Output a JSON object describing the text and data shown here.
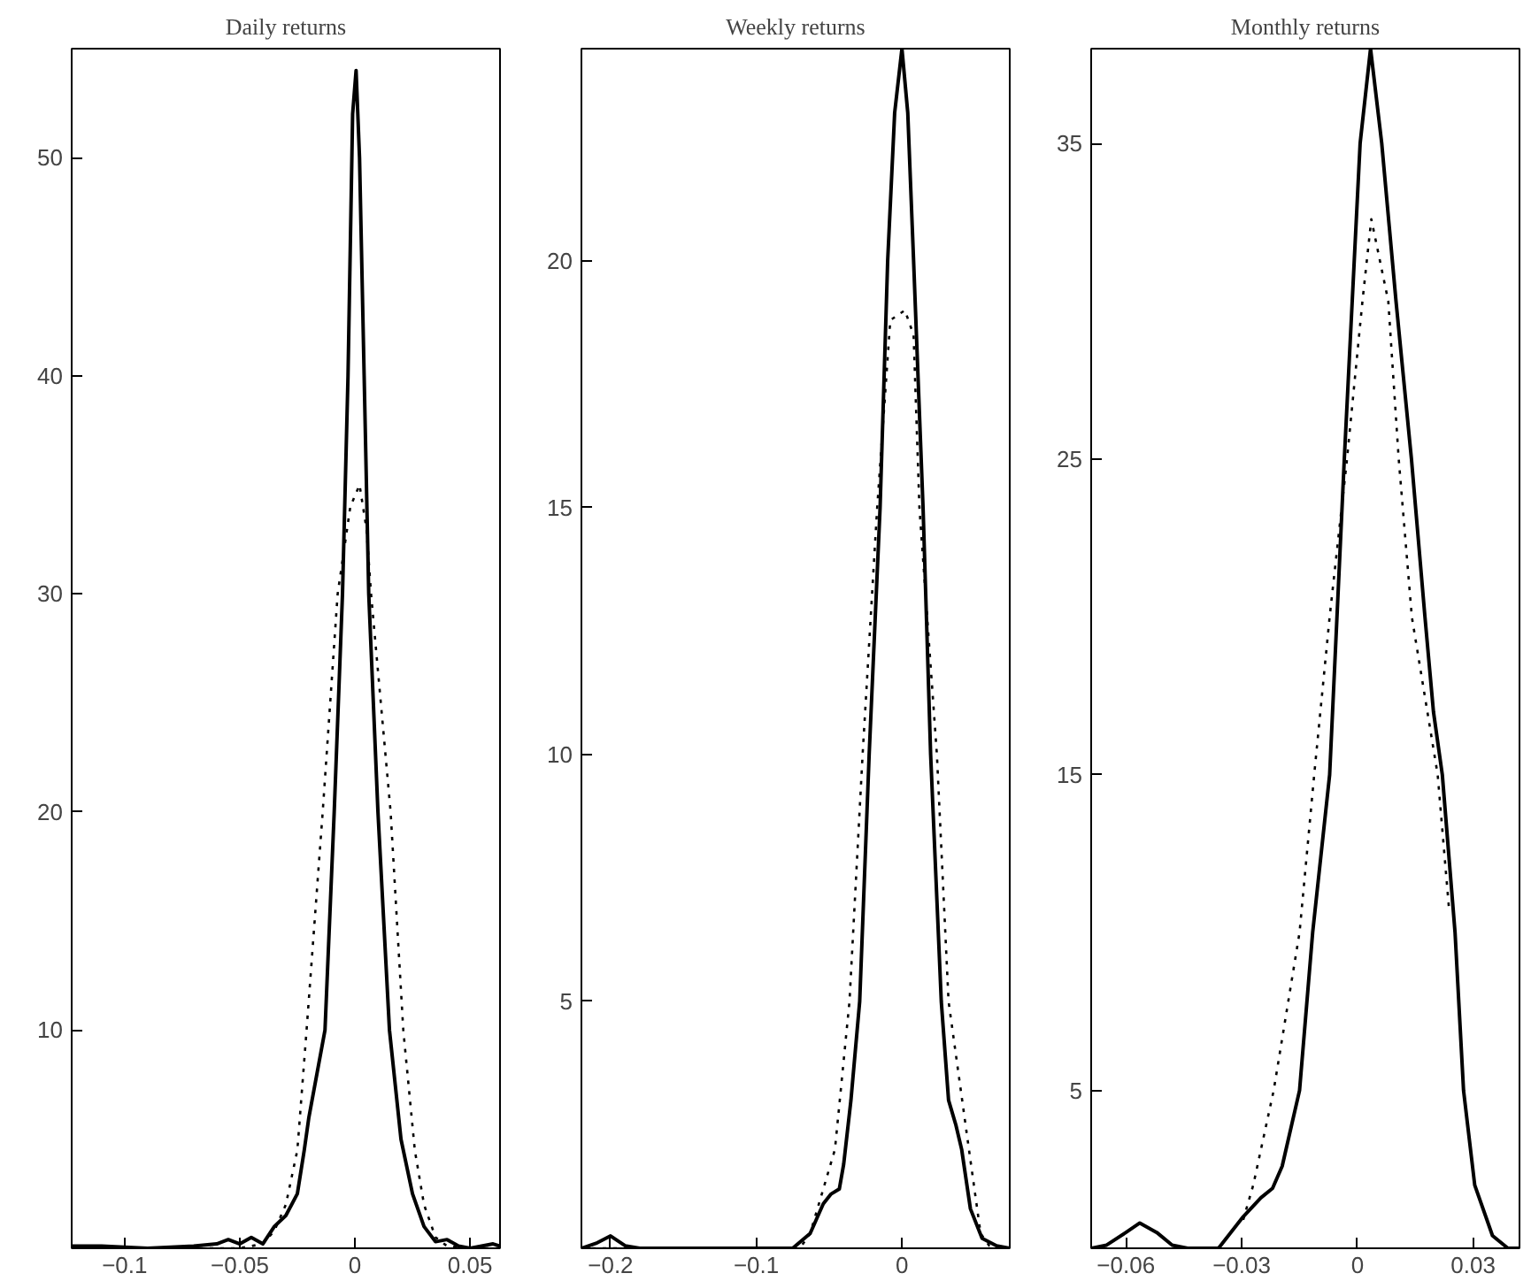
{
  "chart_data": [
    {
      "type": "line",
      "title": "Daily returns",
      "xlim": [
        -0.123,
        0.063
      ],
      "ylim": [
        0,
        55
      ],
      "xticks": [
        {
          "value": -0.1,
          "label": "−0.1"
        },
        {
          "value": -0.05,
          "label": "−0.05"
        },
        0,
        0.05
      ],
      "yticks": [
        10,
        20,
        30,
        40,
        50
      ],
      "series": [
        {
          "color": "#000000",
          "line_style": "solid",
          "x": [
            -0.123,
            -0.11,
            -0.09,
            -0.07,
            -0.06,
            -0.055,
            -0.05,
            -0.045,
            -0.04,
            -0.035,
            -0.03,
            -0.025,
            -0.022,
            -0.02,
            -0.013,
            -0.009,
            -0.0054,
            -0.003,
            -0.001,
            0.0005,
            0.002,
            0.004,
            0.006,
            0.01,
            0.015,
            0.02,
            0.025,
            0.03,
            0.035,
            0.04,
            0.045,
            0.05,
            0.055,
            0.06,
            0.063
          ],
          "values": [
            0.1,
            0.1,
            0,
            0.1,
            0.2,
            0.4,
            0.2,
            0.5,
            0.2,
            1.0,
            1.5,
            2.5,
            4.5,
            6,
            10,
            20,
            30,
            40,
            52,
            54,
            50,
            40,
            30,
            20,
            10,
            5,
            2.5,
            1,
            0.3,
            0.4,
            0.1,
            0,
            0.1,
            0.2,
            0.1
          ]
        },
        {
          "color": "#000000",
          "line_style": "dotted",
          "x": [
            -0.123,
            -0.05,
            -0.04,
            -0.035,
            -0.03,
            -0.025,
            -0.021,
            -0.014,
            -0.0075,
            -0.002,
            0.002,
            0.005,
            0.007,
            0.0155,
            0.021,
            0.026,
            0.03,
            0.035,
            0.04,
            0.05,
            0.063
          ],
          "values": [
            0,
            0,
            0.2,
            0.8,
            2,
            4.5,
            10,
            20,
            30,
            34,
            35,
            33,
            30,
            20,
            10,
            4.5,
            2,
            0.5,
            0.1,
            0,
            0
          ]
        }
      ]
    },
    {
      "type": "line",
      "title": "Weekly returns",
      "xlim": [
        -0.22,
        0.074
      ],
      "ylim": [
        0,
        24.3
      ],
      "xticks": [
        {
          "value": -0.2,
          "label": "−0.2"
        },
        {
          "value": -0.1,
          "label": "−0.1"
        },
        0
      ],
      "yticks": [
        5,
        10,
        15,
        20
      ],
      "series": [
        {
          "color": "#000000",
          "line_style": "solid",
          "x": [
            -0.22,
            -0.21,
            -0.2,
            -0.19,
            -0.18,
            -0.075,
            -0.063,
            -0.054,
            -0.0486,
            -0.043,
            -0.04,
            -0.035,
            -0.029,
            -0.0225,
            -0.015,
            -0.0098,
            -0.005,
            0,
            0.004,
            0.008,
            0.0145,
            0.0197,
            0.027,
            0.032,
            0.037,
            0.041,
            0.047,
            0.055,
            0.065,
            0.074
          ],
          "values": [
            0,
            0.1,
            0.25,
            0.05,
            0,
            0,
            0.3,
            0.9,
            1.1,
            1.2,
            1.7,
            3,
            5,
            10,
            15,
            20,
            23,
            24.3,
            23,
            20,
            15,
            10,
            5,
            3,
            2.5,
            2,
            0.8,
            0.2,
            0.05,
            0
          ]
        },
        {
          "color": "#000000",
          "line_style": "dotted",
          "x": [
            -0.22,
            -0.07,
            -0.063,
            -0.046,
            -0.036,
            -0.027,
            -0.017,
            -0.008,
            0.002,
            0.008,
            0.012,
            0.024,
            0.032,
            0.046,
            0.054,
            0.06,
            0.074
          ],
          "values": [
            0,
            0,
            0.3,
            2,
            5,
            10,
            15,
            18.8,
            19,
            18.5,
            15,
            10,
            5,
            2,
            0.3,
            0.05,
            0
          ]
        }
      ]
    },
    {
      "type": "line",
      "title": "Monthly returns",
      "xlim": [
        -0.069,
        0.042
      ],
      "ylim": [
        0,
        38
      ],
      "xticks": [
        {
          "value": -0.06,
          "label": "−0.06"
        },
        {
          "value": -0.03,
          "label": "−0.03"
        },
        0,
        0.03
      ],
      "yticks": [
        5,
        15,
        25,
        35
      ],
      "series": [
        {
          "color": "#000000",
          "line_style": "solid",
          "x": [
            -0.069,
            -0.065,
            -0.06,
            -0.0564,
            -0.052,
            -0.048,
            -0.044,
            -0.036,
            -0.0296,
            -0.025,
            -0.022,
            -0.0195,
            -0.015,
            -0.0116,
            -0.0072,
            -0.0034,
            0.0007,
            0.0034,
            0.0063,
            0.01,
            0.014,
            0.0175,
            0.0197,
            0.022,
            0.0253,
            0.0275,
            0.0304,
            0.035,
            0.039,
            0.042
          ],
          "values": [
            0,
            0.1,
            0.5,
            0.8,
            0.5,
            0.1,
            0,
            0,
            1,
            1.6,
            1.9,
            2.6,
            5,
            10,
            15,
            25,
            35,
            38,
            35,
            30,
            25,
            20,
            17,
            15,
            10,
            5,
            2,
            0.4,
            0,
            0
          ]
        },
        {
          "color": "#000000",
          "line_style": "dotted",
          "x": [
            -0.0296,
            -0.027,
            -0.0217,
            -0.015,
            -0.0112,
            -0.0072,
            -0.0027,
            0.0013,
            0.0036,
            0.008,
            0.0107,
            0.0141,
            0.0208,
            0.0237
          ],
          "values": [
            0.9,
            2,
            5,
            10,
            15,
            20,
            25,
            30,
            32.6,
            30,
            25,
            20,
            15,
            10.8
          ]
        }
      ]
    }
  ]
}
